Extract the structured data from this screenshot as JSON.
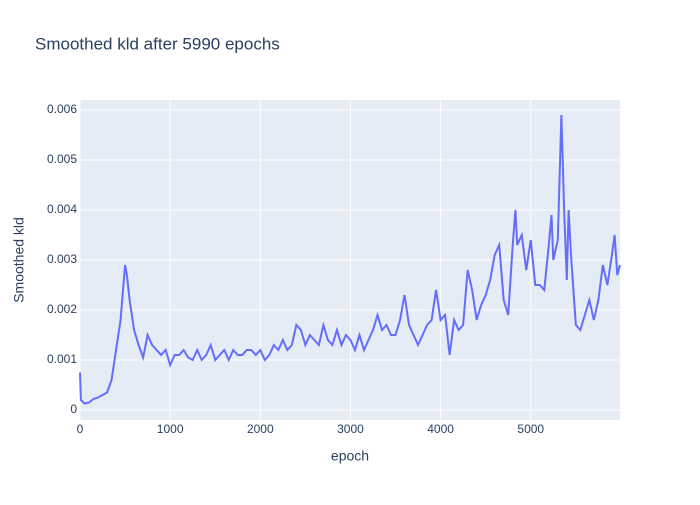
{
  "chart_data": {
    "type": "line",
    "title": "Smoothed kld after 5990 epochs",
    "x_label": "epoch",
    "y_label": "Smoothed kld",
    "x": [
      0,
      10,
      50,
      100,
      150,
      200,
      250,
      300,
      350,
      400,
      450,
      500,
      520,
      550,
      600,
      650,
      700,
      750,
      800,
      850,
      900,
      950,
      1000,
      1050,
      1100,
      1150,
      1200,
      1250,
      1300,
      1350,
      1400,
      1450,
      1500,
      1550,
      1600,
      1650,
      1700,
      1750,
      1800,
      1850,
      1900,
      1950,
      2000,
      2050,
      2100,
      2150,
      2200,
      2250,
      2300,
      2350,
      2400,
      2450,
      2500,
      2550,
      2600,
      2650,
      2700,
      2750,
      2800,
      2850,
      2900,
      2950,
      3000,
      3050,
      3100,
      3150,
      3200,
      3250,
      3300,
      3350,
      3400,
      3450,
      3500,
      3550,
      3600,
      3650,
      3700,
      3750,
      3800,
      3850,
      3900,
      3950,
      4000,
      4050,
      4100,
      4150,
      4200,
      4250,
      4300,
      4350,
      4400,
      4450,
      4500,
      4550,
      4600,
      4650,
      4700,
      4750,
      4800,
      4830,
      4850,
      4900,
      4950,
      5000,
      5050,
      5100,
      5150,
      5200,
      5230,
      5250,
      5300,
      5340,
      5370,
      5400,
      5420,
      5450,
      5500,
      5550,
      5600,
      5650,
      5700,
      5750,
      5800,
      5850,
      5900,
      5930,
      5960,
      5990
    ],
    "series": [
      {
        "name": "Smoothed kld",
        "color": "#636efa",
        "values": [
          0.00075,
          0.0002,
          0.00013,
          0.00015,
          0.00022,
          0.00025,
          0.0003,
          0.00035,
          0.0006,
          0.0012,
          0.0018,
          0.0029,
          0.0027,
          0.0022,
          0.0016,
          0.0013,
          0.00105,
          0.0015,
          0.0013,
          0.0012,
          0.0011,
          0.0012,
          0.0009,
          0.0011,
          0.0011,
          0.0012,
          0.00105,
          0.001,
          0.0012,
          0.001,
          0.0011,
          0.0013,
          0.001,
          0.0011,
          0.0012,
          0.001,
          0.0012,
          0.0011,
          0.0011,
          0.0012,
          0.0012,
          0.0011,
          0.0012,
          0.001,
          0.0011,
          0.0013,
          0.0012,
          0.0014,
          0.0012,
          0.0013,
          0.0017,
          0.0016,
          0.0013,
          0.0015,
          0.0014,
          0.0013,
          0.0017,
          0.0014,
          0.0013,
          0.0016,
          0.0013,
          0.0015,
          0.0014,
          0.0012,
          0.0015,
          0.0012,
          0.0014,
          0.0016,
          0.0019,
          0.0016,
          0.0017,
          0.0015,
          0.0015,
          0.0018,
          0.0023,
          0.0017,
          0.0015,
          0.0013,
          0.0015,
          0.0017,
          0.0018,
          0.0024,
          0.0018,
          0.0019,
          0.0011,
          0.0018,
          0.0016,
          0.0017,
          0.0028,
          0.0024,
          0.0018,
          0.0021,
          0.0023,
          0.0026,
          0.0031,
          0.0033,
          0.0022,
          0.0019,
          0.0033,
          0.004,
          0.0033,
          0.0035,
          0.0028,
          0.0034,
          0.0025,
          0.0025,
          0.0024,
          0.0033,
          0.0039,
          0.003,
          0.0034,
          0.0059,
          0.004,
          0.0026,
          0.004,
          0.003,
          0.0017,
          0.0016,
          0.0019,
          0.0022,
          0.0018,
          0.0022,
          0.0029,
          0.0025,
          0.0031,
          0.0035,
          0.0027,
          0.0029
        ]
      }
    ],
    "xlim": [
      0,
      5990
    ],
    "ylim": [
      -0.0002,
      0.0062
    ],
    "xticks": [
      0,
      1000,
      2000,
      3000,
      4000,
      5000
    ],
    "yticks": [
      0,
      0.001,
      0.002,
      0.003,
      0.004,
      0.005,
      0.006
    ],
    "grid": true
  }
}
